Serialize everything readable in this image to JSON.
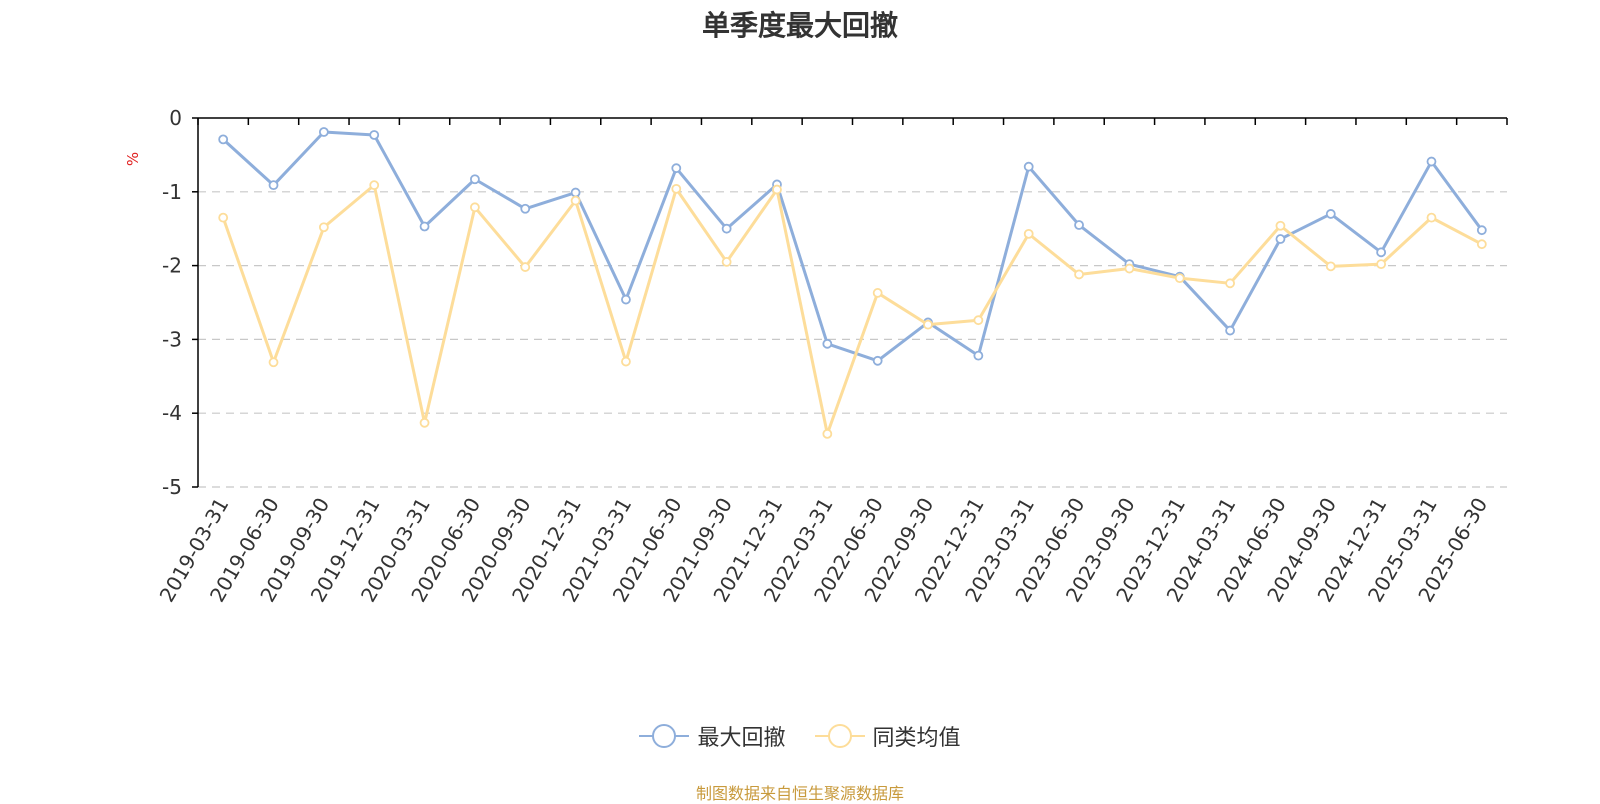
{
  "title": "单季度最大回撤",
  "unit": "%",
  "source": "制图数据来自恒生聚源数据库",
  "colors": {
    "series1": "#8eaedb",
    "series2": "#fddd9a",
    "grid": "#c8c8c8",
    "axis": "#000000"
  },
  "chart_data": {
    "type": "line",
    "title": "单季度最大回撤",
    "ylabel": "%",
    "ylim": [
      -5,
      0
    ],
    "yticks": [
      0,
      -1,
      -2,
      -3,
      -4,
      -5
    ],
    "grid": true,
    "legend_position": "bottom-center",
    "categories": [
      "2019-03-31",
      "2019-06-30",
      "2019-09-30",
      "2019-12-31",
      "2020-03-31",
      "2020-06-30",
      "2020-09-30",
      "2020-12-31",
      "2021-03-31",
      "2021-06-30",
      "2021-09-30",
      "2021-12-31",
      "2022-03-31",
      "2022-06-30",
      "2022-09-30",
      "2022-12-31",
      "2023-03-31",
      "2023-06-30",
      "2023-09-30",
      "2023-12-31",
      "2024-03-31",
      "2024-06-30",
      "2024-09-30",
      "2024-12-31",
      "2025-03-31",
      "2025-06-30"
    ],
    "series": [
      {
        "name": "最大回撤",
        "color": "#8eaedb",
        "values": [
          -0.29,
          -0.91,
          -0.19,
          -0.23,
          -1.47,
          -0.83,
          -1.23,
          -1.01,
          -2.46,
          -0.68,
          -1.5,
          -0.9,
          -3.06,
          -3.29,
          -2.77,
          -3.22,
          -0.66,
          -1.45,
          -1.98,
          -2.15,
          -2.88,
          -1.64,
          -1.3,
          -1.82,
          -0.59,
          -1.52
        ]
      },
      {
        "name": "同类均值",
        "color": "#fddd9a",
        "values": [
          -1.35,
          -3.31,
          -1.48,
          -0.91,
          -4.13,
          -1.21,
          -2.02,
          -1.12,
          -3.3,
          -0.96,
          -1.95,
          -0.97,
          -4.28,
          -2.37,
          -2.8,
          -2.74,
          -1.57,
          -2.12,
          -2.04,
          -2.17,
          -2.24,
          -1.46,
          -2.01,
          -1.98,
          -1.35,
          -1.71
        ]
      }
    ]
  }
}
